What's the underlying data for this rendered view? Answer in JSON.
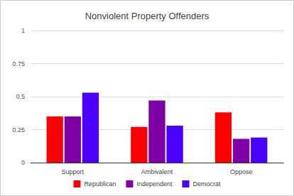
{
  "chart_data": {
    "type": "bar",
    "title": "Nonviolent Property Offenders",
    "categories": [
      "Support",
      "Ambivalent",
      "Oppose"
    ],
    "series": [
      {
        "name": "Republican",
        "color": "#ff0000",
        "values": [
          0.35,
          0.27,
          0.38
        ]
      },
      {
        "name": "Independent",
        "color": "#8000a8",
        "values": [
          0.35,
          0.47,
          0.18
        ]
      },
      {
        "name": "Democrat",
        "color": "#4a00ff",
        "values": [
          0.53,
          0.28,
          0.19
        ]
      }
    ],
    "ylim": [
      0,
      1
    ],
    "yticks": [
      0,
      0.25,
      0.5,
      0.75,
      1
    ],
    "grid": true,
    "legend": "bottom"
  }
}
